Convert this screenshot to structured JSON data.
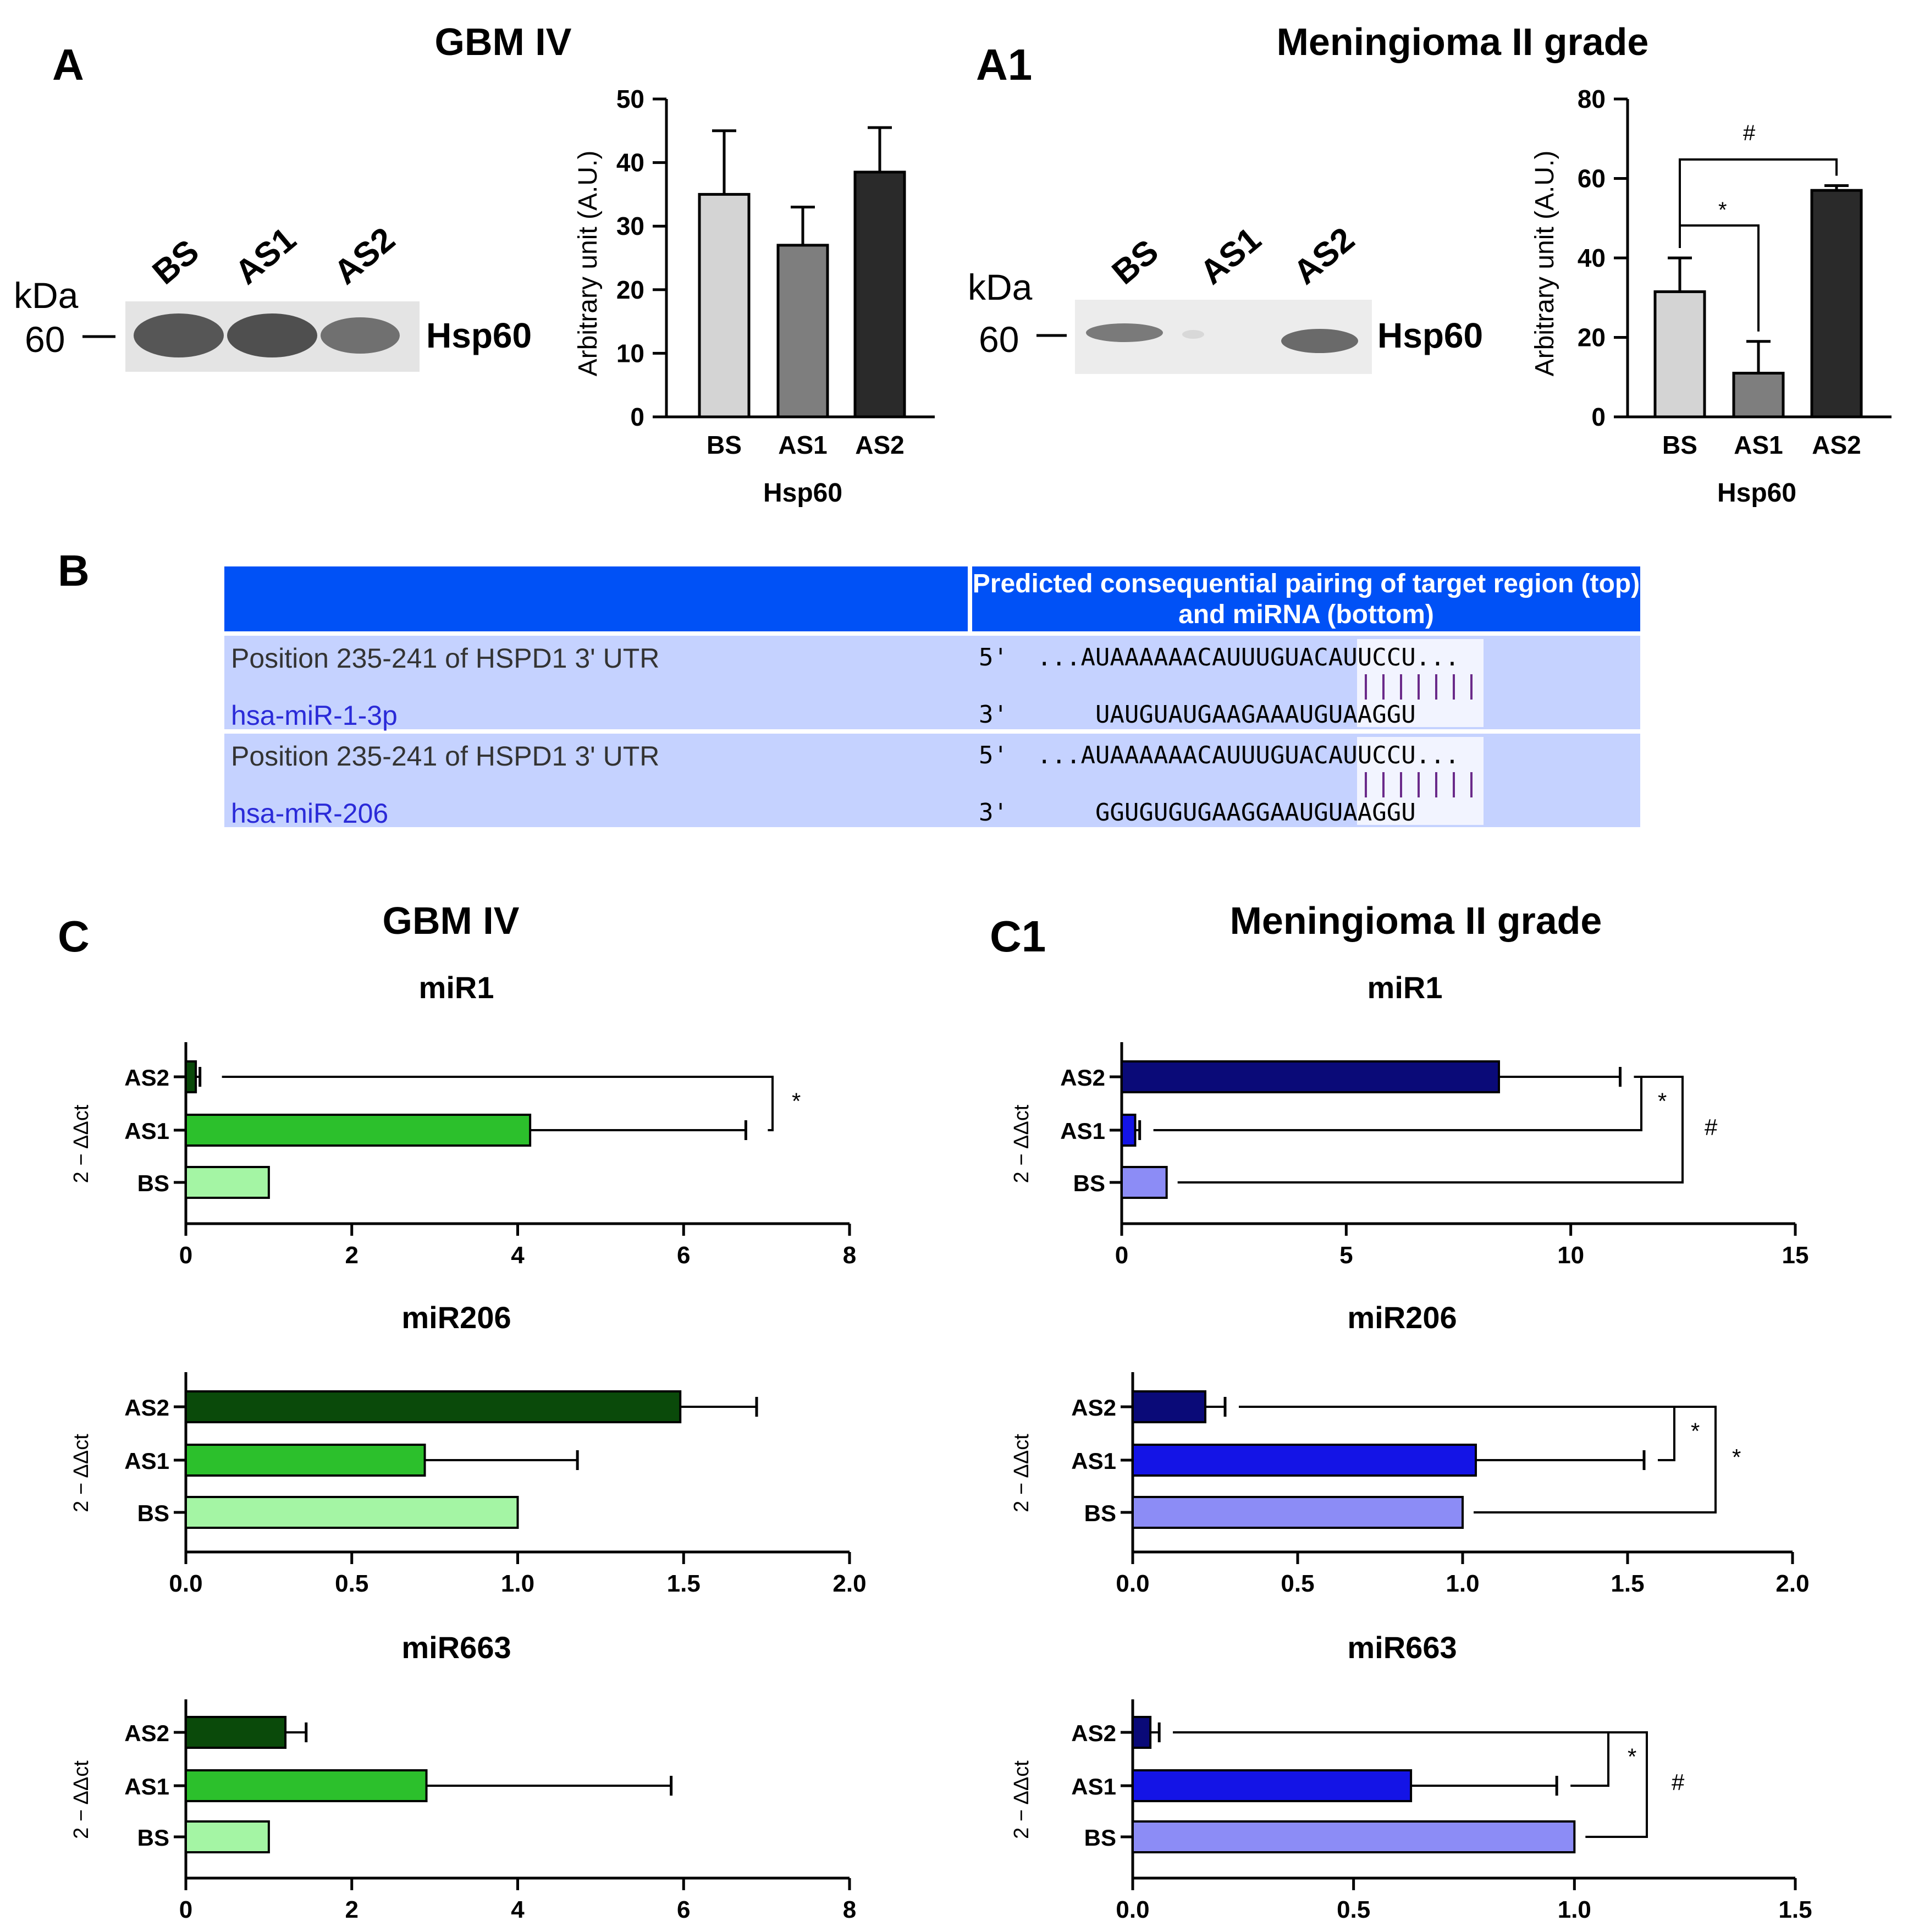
{
  "panels": {
    "A": {
      "letter": "A",
      "title": "GBM IV"
    },
    "A1": {
      "letter": "A1",
      "title": "Meningioma II grade"
    },
    "B": {
      "letter": "B"
    },
    "C": {
      "letter": "C",
      "title": "GBM IV"
    },
    "C1": {
      "letter": "C1",
      "title": "Meningioma II grade"
    }
  },
  "blots": {
    "A": {
      "lanes": [
        "BS",
        "AS1",
        "AS2"
      ],
      "kda_label": "kDa",
      "marker": "60",
      "protein": "Hsp60"
    },
    "A1": {
      "lanes": [
        "BS",
        "AS1",
        "AS2"
      ],
      "kda_label": "kDa",
      "marker": "60",
      "protein": "Hsp60"
    }
  },
  "table": {
    "header": "Predicted consequential pairing of target region (top) and miRNA (bottom)",
    "rows": [
      {
        "position": "Position 235-241 of HSPD1 3' UTR",
        "mirna": "hsa-miR-1-3p",
        "target_prefix": "5'",
        "target": "...AUAAAAAACAUUUGUACAUUCCU...",
        "mirna_prefix": "3'",
        "mirna_seq": "UAUGUAUGAAGAAAUGUAAGGU"
      },
      {
        "position": "Position 235-241 of HSPD1 3' UTR",
        "mirna": "hsa-miR-206",
        "target_prefix": "5'",
        "target": "...AUAAAAAACAUUUGUACAUUCCU...",
        "mirna_prefix": "3'",
        "mirna_seq": "GGUGUGUGAAGGAAUGUAAGGU"
      }
    ]
  },
  "chart_data": [
    {
      "id": "A",
      "type": "bar",
      "orientation": "vertical",
      "title": "",
      "xlabel": "Hsp60",
      "ylabel": "Arbitrary unit (A.U.)",
      "categories": [
        "BS",
        "AS1",
        "AS2"
      ],
      "values": [
        35,
        27,
        38.5
      ],
      "errors": [
        10,
        6,
        7
      ],
      "ylim": [
        0,
        50
      ],
      "yticks": [
        0,
        10,
        20,
        30,
        40,
        50
      ],
      "colors": [
        "#d4d4d4",
        "#7e7e7e",
        "#2a2a2a"
      ],
      "annotations": []
    },
    {
      "id": "A1",
      "type": "bar",
      "orientation": "vertical",
      "title": "",
      "xlabel": "Hsp60",
      "ylabel": "Arbitrary unit (A.U.)",
      "categories": [
        "BS",
        "AS1",
        "AS2"
      ],
      "values": [
        31.5,
        11,
        57
      ],
      "errors": [
        8.5,
        8,
        1.2
      ],
      "ylim": [
        0,
        80
      ],
      "yticks": [
        0,
        20,
        40,
        60,
        80
      ],
      "colors": [
        "#d4d4d4",
        "#7e7e7e",
        "#2a2a2a"
      ],
      "annotations": [
        {
          "between": [
            "BS",
            "AS1"
          ],
          "label": "*"
        },
        {
          "between": [
            "BS",
            "AS2"
          ],
          "label": "#"
        }
      ]
    },
    {
      "id": "C-miR1",
      "type": "bar",
      "orientation": "horizontal",
      "title": "miR1",
      "xlabel": "",
      "ylabel": "2 − ΔΔct",
      "categories": [
        "AS2",
        "AS1",
        "BS"
      ],
      "values": [
        0.12,
        4.15,
        1.0
      ],
      "errors": [
        0.05,
        2.6,
        0
      ],
      "xlim": [
        0,
        8
      ],
      "xticks": [
        "0",
        "2",
        "4",
        "6",
        "8"
      ],
      "colors": [
        "#0a4a0a",
        "#2cc02c",
        "#a4f5a4"
      ],
      "annotations": [
        {
          "between": [
            "AS2",
            "AS1"
          ],
          "label": "*"
        }
      ]
    },
    {
      "id": "C-miR206",
      "type": "bar",
      "orientation": "horizontal",
      "title": "miR206",
      "xlabel": "",
      "ylabel": "2 − ΔΔct",
      "categories": [
        "AS2",
        "AS1",
        "BS"
      ],
      "values": [
        1.49,
        0.72,
        1.0
      ],
      "errors": [
        0.23,
        0.46,
        0
      ],
      "xlim": [
        0,
        2
      ],
      "xticks": [
        "0.0",
        "0.5",
        "1.0",
        "1.5",
        "2.0"
      ],
      "colors": [
        "#0a4a0a",
        "#2cc02c",
        "#a4f5a4"
      ],
      "annotations": []
    },
    {
      "id": "C-miR663",
      "type": "bar",
      "orientation": "horizontal",
      "title": "miR663",
      "xlabel": "",
      "ylabel": "2 − ΔΔct",
      "categories": [
        "AS2",
        "AS1",
        "BS"
      ],
      "values": [
        1.2,
        2.9,
        1.0
      ],
      "errors": [
        0.25,
        2.95,
        0
      ],
      "xlim": [
        0,
        8
      ],
      "xticks": [
        "0",
        "2",
        "4",
        "6",
        "8"
      ],
      "colors": [
        "#0a4a0a",
        "#2cc02c",
        "#a4f5a4"
      ],
      "annotations": []
    },
    {
      "id": "C1-miR1",
      "type": "bar",
      "orientation": "horizontal",
      "title": "miR1",
      "xlabel": "",
      "ylabel": "2 − ΔΔct",
      "categories": [
        "AS2",
        "AS1",
        "BS"
      ],
      "values": [
        8.4,
        0.3,
        1.0
      ],
      "errors": [
        2.7,
        0.1,
        0
      ],
      "xlim": [
        0,
        15
      ],
      "xticks": [
        "0",
        "5",
        "10",
        "15"
      ],
      "colors": [
        "#0a0a78",
        "#1414e6",
        "#8c8cf6"
      ],
      "annotations": [
        {
          "between": [
            "AS2",
            "AS1"
          ],
          "label": "*"
        },
        {
          "between": [
            "AS2",
            "BS"
          ],
          "label": "#"
        }
      ]
    },
    {
      "id": "C1-miR206",
      "type": "bar",
      "orientation": "horizontal",
      "title": "miR206",
      "xlabel": "",
      "ylabel": "2 − ΔΔct",
      "categories": [
        "AS2",
        "AS1",
        "BS"
      ],
      "values": [
        0.22,
        1.04,
        1.0
      ],
      "errors": [
        0.06,
        0.51,
        0
      ],
      "xlim": [
        0,
        2
      ],
      "xticks": [
        "0.0",
        "0.5",
        "1.0",
        "1.5",
        "2.0"
      ],
      "colors": [
        "#0a0a78",
        "#1414e6",
        "#8c8cf6"
      ],
      "annotations": [
        {
          "between": [
            "AS2",
            "AS1"
          ],
          "label": "*"
        },
        {
          "between": [
            "AS2",
            "BS"
          ],
          "label": "*"
        }
      ]
    },
    {
      "id": "C1-miR663",
      "type": "bar",
      "orientation": "horizontal",
      "title": "miR663",
      "xlabel": "",
      "ylabel": "2 − ΔΔct",
      "categories": [
        "AS2",
        "AS1",
        "BS"
      ],
      "values": [
        0.04,
        0.63,
        1.0
      ],
      "errors": [
        0.02,
        0.33,
        0
      ],
      "xlim": [
        0,
        1.5
      ],
      "xticks": [
        "0.0",
        "0.5",
        "1.0",
        "1.5"
      ],
      "colors": [
        "#0a0a78",
        "#1414e6",
        "#8c8cf6"
      ],
      "annotations": [
        {
          "between": [
            "AS2",
            "AS1"
          ],
          "label": "*"
        },
        {
          "between": [
            "AS2",
            "BS"
          ],
          "label": "#"
        }
      ]
    }
  ]
}
